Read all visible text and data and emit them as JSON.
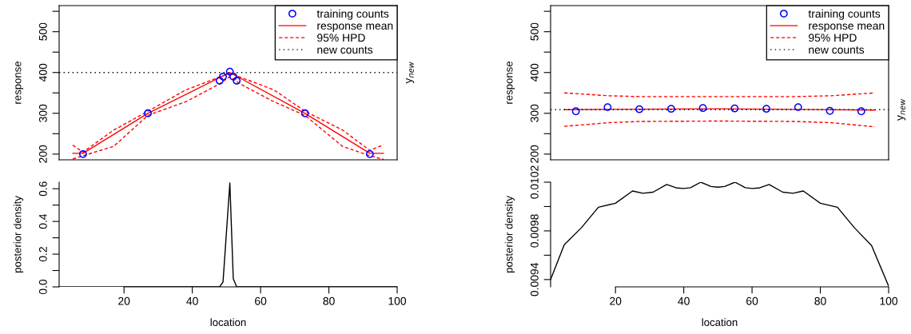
{
  "chart_data": [
    {
      "type": "line",
      "ylabel": "response",
      "xlim": [
        1,
        100
      ],
      "ylim": [
        186,
        564
      ],
      "yticks": [
        200,
        {
          "value": 250,
          "label": null
        },
        300,
        {
          "value": 350,
          "label": null
        },
        400,
        {
          "value": 450,
          "label": null
        },
        500,
        {
          "value": 550,
          "label": null
        }
      ],
      "tick_labels": "y",
      "legend": "top right",
      "series": [
        {
          "name": "training counts",
          "type": "scatter",
          "marker": "circle",
          "color": "#0000ff",
          "x": [
            8,
            27,
            48,
            49,
            51,
            52,
            53,
            73,
            92
          ],
          "values": [
            200,
            300,
            380,
            390,
            402,
            390,
            380,
            300,
            200
          ]
        },
        {
          "name": "response mean",
          "color": "#ff0000",
          "line_style": "solid",
          "x": [
            5,
            8,
            27,
            51,
            73,
            92,
            96
          ],
          "values": [
            202,
            202,
            300,
            400,
            300,
            202,
            202
          ]
        },
        {
          "name": "95% HPD",
          "color": "#ff0000",
          "line_style": "dashed",
          "x": [
            5,
            8,
            17,
            27,
            38,
            49,
            51,
            53,
            64,
            73,
            84,
            92,
            96
          ],
          "values": [
            222,
            205,
            259,
            305,
            357,
            392,
            398,
            392,
            357,
            305,
            259,
            209,
            223
          ]
        },
        {
          "color": "#ff0000",
          "line_style": "dashed",
          "x": [
            5,
            8,
            17,
            27,
            38,
            48,
            51,
            54,
            64,
            73,
            84,
            92,
            96
          ],
          "values": [
            188,
            196,
            219,
            295,
            328,
            372,
            390,
            372,
            328,
            295,
            219,
            196,
            187
          ]
        },
        {
          "name": "new counts",
          "color": "#000000",
          "line_style": "dotted",
          "x": [
            1,
            100
          ],
          "values": [
            400,
            400
          ]
        }
      ],
      "annotations": [
        {
          "text": "y$_{new}$",
          "x": 100,
          "y": 400
        }
      ]
    },
    {
      "type": "line",
      "ylabel": "response",
      "xlim": [
        1,
        100
      ],
      "ylim": [
        186,
        564
      ],
      "yticks": [
        200,
        {
          "value": 250,
          "label": null
        },
        300,
        {
          "value": 350,
          "label": null
        },
        400,
        {
          "value": 450,
          "label": null
        },
        500,
        {
          "value": 550,
          "label": null
        }
      ],
      "tick_labels": "y",
      "legend": "top right",
      "series": [
        {
          "name": "training counts",
          "type": "scatter",
          "marker": "circle",
          "color": "#0000ff",
          "x": [
            8.4,
            17.7,
            27,
            36.3,
            45.6,
            54.9,
            64.2,
            73.5,
            82.8,
            92
          ],
          "values": [
            305,
            315,
            310,
            311,
            313,
            312,
            311,
            315,
            306,
            305
          ]
        },
        {
          "name": "response mean",
          "color": "#ff0000",
          "line_style": "solid",
          "x": [
            5,
            50,
            96
          ],
          "values": [
            309,
            311,
            308
          ]
        },
        {
          "name": "95% HPD",
          "color": "#ff0000",
          "line_style": "dashed",
          "x": [
            5,
            18,
            27,
            50,
            73,
            83,
            96
          ],
          "values": [
            350,
            343,
            341,
            341,
            341,
            343,
            350
          ]
        },
        {
          "color": "#ff0000",
          "line_style": "dashed",
          "x": [
            5,
            18,
            27,
            50,
            73,
            83,
            96
          ],
          "values": [
            268,
            277,
            280,
            281,
            280,
            277,
            267
          ]
        },
        {
          "name": "new counts",
          "color": "#000000",
          "line_style": "dotted",
          "x": [
            1,
            100
          ],
          "values": [
            309,
            309
          ]
        }
      ],
      "annotations": [
        {
          "text": "y$_{new}$",
          "x": 100,
          "y": 309
        }
      ]
    },
    {
      "type": "line",
      "xlabel": "location",
      "ylabel": "posterior density",
      "xlim": [
        1,
        100
      ],
      "xticks": [
        20,
        40,
        60,
        80,
        100
      ],
      "ylim": [
        0,
        0.64
      ],
      "yticks": [
        {
          "value": 0,
          "label": "0.0"
        },
        {
          "value": 0.1,
          "label": null
        },
        0.2,
        {
          "value": 0.3,
          "label": null
        },
        0.4,
        {
          "value": 0.5,
          "label": null
        },
        0.6
      ],
      "series": [
        {
          "color": "#000000",
          "line_style": "solid",
          "x": [
            1,
            48,
            49,
            51,
            52,
            53,
            100
          ],
          "values": [
            0,
            0,
            0.03,
            0.635,
            0.05,
            0,
            0
          ]
        }
      ]
    },
    {
      "type": "line",
      "xlabel": "location",
      "ylabel": "posterior density",
      "xlim": [
        1,
        100
      ],
      "xticks": [
        20,
        40,
        60,
        80,
        100
      ],
      "ylim": [
        0.00934,
        0.0102
      ],
      "yticks": [
        0.0094,
        {
          "value": 0.0096,
          "label": null
        },
        0.0098,
        {
          "value": 0.01,
          "label": null
        },
        0.0102
      ],
      "series": [
        {
          "color": "#000000",
          "line_style": "solid",
          "x": [
            1,
            5,
            10,
            15,
            20,
            25,
            28,
            31,
            35,
            38,
            40,
            42,
            45,
            48,
            50,
            52,
            55,
            58,
            60,
            62,
            65,
            69,
            72,
            75,
            80,
            85,
            90,
            95,
            100
          ],
          "values": [
            0.0094,
            0.009687,
            0.009825,
            0.009994,
            0.010027,
            0.010128,
            0.010109,
            0.010118,
            0.010181,
            0.010152,
            0.010148,
            0.010155,
            0.0102,
            0.010165,
            0.010159,
            0.010165,
            0.0102,
            0.010155,
            0.010148,
            0.010152,
            0.010181,
            0.010118,
            0.010109,
            0.010128,
            0.010027,
            0.009994,
            0.009825,
            0.00968,
            0.009346
          ]
        }
      ]
    }
  ]
}
